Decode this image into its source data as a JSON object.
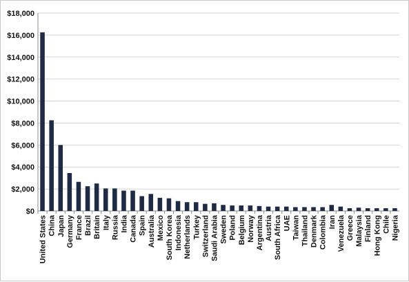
{
  "chart_data": {
    "type": "bar",
    "title": "",
    "xlabel": "",
    "ylabel": "",
    "ylim": [
      0,
      18000
    ],
    "yticks": [
      0,
      2000,
      4000,
      6000,
      8000,
      10000,
      12000,
      14000,
      16000,
      18000
    ],
    "ytick_labels": [
      "$0",
      "$2,000",
      "$4,000",
      "$6,000",
      "$8,000",
      "$10,000",
      "$12,000",
      "$14,000",
      "$16,000",
      "$18,000"
    ],
    "grid": true,
    "legend": "none",
    "bar_color": "#1f2a44",
    "categories": [
      "United States",
      "China",
      "Japan",
      "Germany",
      "France",
      "Brazil",
      "Britain",
      "Italy",
      "Russia",
      "India",
      "Canada",
      "Spain",
      "Australia",
      "Mexico",
      "South Korea",
      "Indonesia",
      "Netherlands",
      "Turkey",
      "Switzerland",
      "Saudi Arabia",
      "Sweden",
      "Poland",
      "Belgium",
      "Norway",
      "Argentina",
      "Austria",
      "South Africa",
      "UAE",
      "Taiwan",
      "Thailand",
      "Denmark",
      "Colombia",
      "Iran",
      "Venezuela",
      "Greece",
      "Malaysia",
      "Finland",
      "Hong Kong",
      "Chile",
      "Nigeria"
    ],
    "values": [
      16250,
      8250,
      6000,
      3450,
      2650,
      2250,
      2500,
      2050,
      2050,
      1850,
      1850,
      1350,
      1550,
      1200,
      1150,
      900,
      800,
      800,
      650,
      700,
      550,
      500,
      500,
      500,
      450,
      400,
      400,
      400,
      350,
      350,
      350,
      350,
      550,
      400,
      250,
      300,
      250,
      250,
      250,
      250
    ]
  }
}
